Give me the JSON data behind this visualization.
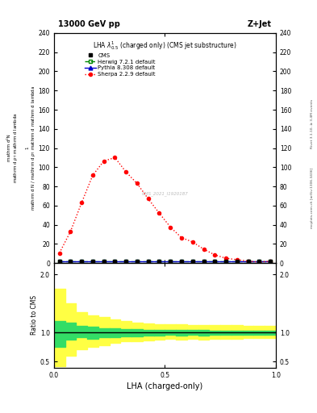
{
  "title_top": "13000 GeV pp",
  "title_right": "Z+Jet",
  "plot_title": "LHA $\\lambda^{1}_{0.5}$ (charged only) (CMS jet substructure)",
  "ylabel_ratio": "Ratio to CMS",
  "xlabel": "LHA (charged-only)",
  "watermark": "CMS_2021_I1920187",
  "rivet_text": "Rivet 3.1.10, ≥ 3.4M events",
  "mcplots_text": "mcplots.cern.ch [arXiv:1306.3436]",
  "sherpa_x": [
    0.025,
    0.075,
    0.125,
    0.175,
    0.225,
    0.275,
    0.325,
    0.375,
    0.425,
    0.475,
    0.525,
    0.575,
    0.625,
    0.675,
    0.725,
    0.775,
    0.825,
    0.875,
    0.925,
    0.975
  ],
  "sherpa_y": [
    10.5,
    33.0,
    63.0,
    91.5,
    106.5,
    110.0,
    95.0,
    83.0,
    67.0,
    52.0,
    37.5,
    26.5,
    22.0,
    14.5,
    8.5,
    5.0,
    3.5,
    2.0,
    1.0,
    2.0
  ],
  "cms_x": [
    0.025,
    0.075,
    0.125,
    0.175,
    0.225,
    0.275,
    0.325,
    0.375,
    0.425,
    0.475,
    0.525,
    0.575,
    0.625,
    0.675,
    0.725,
    0.775,
    0.825,
    0.875,
    0.925,
    0.975
  ],
  "cms_y": [
    2.0,
    2.0,
    2.0,
    2.0,
    2.0,
    2.0,
    2.0,
    2.0,
    2.0,
    2.0,
    2.0,
    2.0,
    2.0,
    2.0,
    2.0,
    2.0,
    2.0,
    2.0,
    2.0,
    2.0
  ],
  "herwig_x": [
    0.025,
    0.075,
    0.125,
    0.175,
    0.225,
    0.275,
    0.325,
    0.375,
    0.425,
    0.475,
    0.525,
    0.575,
    0.625,
    0.675,
    0.725,
    0.775,
    0.825,
    0.875,
    0.925,
    0.975
  ],
  "herwig_y": [
    2.0,
    2.0,
    2.0,
    2.0,
    2.0,
    2.0,
    2.0,
    2.0,
    2.0,
    2.0,
    2.0,
    2.0,
    2.0,
    2.0,
    2.0,
    2.0,
    2.0,
    2.0,
    2.0,
    2.0
  ],
  "pythia_x": [
    0.025,
    0.075,
    0.125,
    0.175,
    0.225,
    0.275,
    0.325,
    0.375,
    0.425,
    0.475,
    0.525,
    0.575,
    0.625,
    0.675,
    0.725,
    0.775,
    0.825,
    0.875,
    0.925,
    0.975
  ],
  "pythia_y": [
    2.0,
    2.0,
    2.0,
    2.0,
    2.0,
    2.0,
    2.0,
    2.0,
    2.0,
    2.0,
    2.0,
    2.0,
    2.0,
    2.0,
    2.0,
    2.0,
    2.0,
    2.0,
    2.0,
    2.0
  ],
  "ratio_x_edges": [
    0.0,
    0.05,
    0.1,
    0.15,
    0.2,
    0.25,
    0.3,
    0.35,
    0.4,
    0.45,
    0.5,
    0.55,
    0.6,
    0.65,
    0.7,
    0.75,
    0.8,
    0.85,
    0.9,
    0.95,
    1.0
  ],
  "green_ratio_lo": [
    0.75,
    0.88,
    0.92,
    0.9,
    0.92,
    0.93,
    0.94,
    0.94,
    0.95,
    0.95,
    0.96,
    0.95,
    0.96,
    0.95,
    0.96,
    0.97,
    0.97,
    0.97,
    0.97,
    0.97
  ],
  "green_ratio_hi": [
    1.2,
    1.18,
    1.12,
    1.1,
    1.08,
    1.07,
    1.06,
    1.06,
    1.05,
    1.05,
    1.05,
    1.05,
    1.05,
    1.05,
    1.04,
    1.04,
    1.04,
    1.04,
    1.04,
    1.04
  ],
  "yellow_ratio_lo": [
    0.42,
    0.6,
    0.72,
    0.75,
    0.78,
    0.82,
    0.85,
    0.86,
    0.87,
    0.88,
    0.89,
    0.88,
    0.89,
    0.88,
    0.89,
    0.9,
    0.9,
    0.91,
    0.91,
    0.91
  ],
  "yellow_ratio_hi": [
    1.75,
    1.5,
    1.35,
    1.3,
    1.27,
    1.23,
    1.2,
    1.18,
    1.16,
    1.15,
    1.14,
    1.14,
    1.13,
    1.13,
    1.13,
    1.13,
    1.13,
    1.12,
    1.12,
    1.12
  ],
  "ylim_main": [
    0,
    240
  ],
  "ylim_ratio": [
    0.4,
    2.2
  ],
  "color_cms": "#000000",
  "color_herwig": "#008800",
  "color_pythia": "#0000cc",
  "color_sherpa": "#ff0000",
  "color_green_band": "#33dd66",
  "color_yellow_band": "#ffff44",
  "yticks_main": [
    0,
    20,
    40,
    60,
    80,
    100,
    120,
    140,
    160,
    180,
    200,
    220,
    240
  ],
  "yticks_ratio": [
    0.5,
    1.0,
    2.0
  ]
}
